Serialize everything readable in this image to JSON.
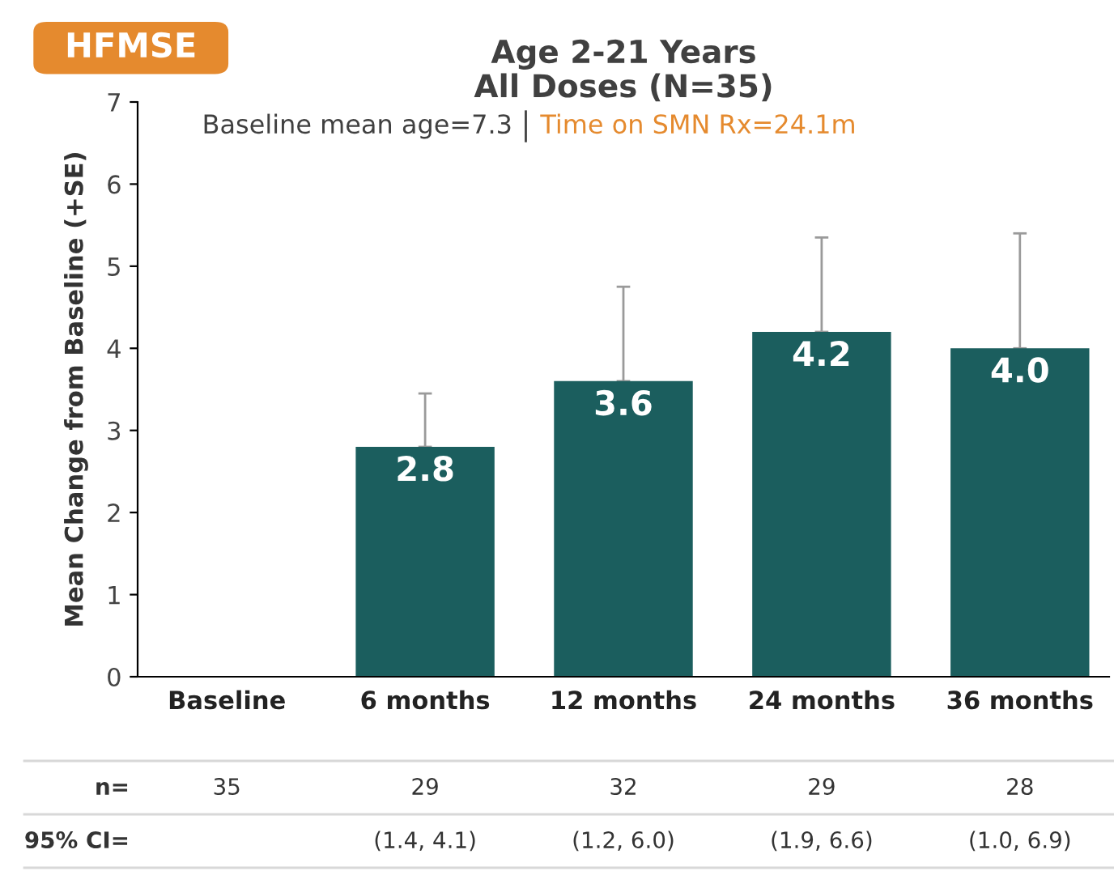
{
  "chart_data": {
    "type": "bar",
    "title": "Age 2-21 Years\nAll Doses (N=35)",
    "subtitle": "Baseline mean age=7.3",
    "ylabel": "Mean Change from Baseline (+SE)",
    "categories": [
      "Baseline",
      "6 months",
      "12 months",
      "24 months",
      "36 months"
    ],
    "values": [
      0,
      2.8,
      3.6,
      4.2,
      4.0
    ],
    "value_labels": [
      null,
      "2.8",
      "3.6",
      "4.2",
      "4.0"
    ],
    "errors": [
      null,
      [
        2.8,
        3.45
      ],
      [
        3.6,
        4.75
      ],
      [
        4.2,
        5.35
      ],
      [
        4.0,
        5.4
      ]
    ],
    "color": "#1b5e5e",
    "ylim": [
      0,
      7
    ],
    "yticks": [
      0,
      1,
      2,
      3,
      4,
      5,
      6,
      7
    ],
    "grid": false,
    "legend": false,
    "annotations": [
      "HFMSE",
      "Time on SMN Rx=24.1m",
      "n=",
      "35",
      "29",
      "32",
      "29",
      "28",
      "95% CI=",
      "(1.4, 4.1)",
      "(1.2, 6.0)",
      "(1.9, 6.6)",
      "(1.0, 6.9)"
    ]
  }
}
